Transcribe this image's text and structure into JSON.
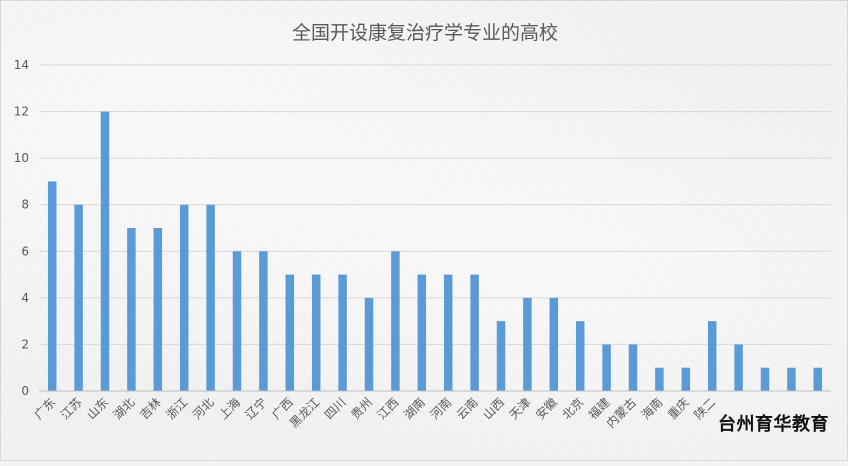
{
  "chart_data": {
    "type": "bar",
    "title": "全国开设康复治疗学专业的高校",
    "xlabel": "",
    "ylabel": "",
    "ylim": [
      0,
      14
    ],
    "yticks": [
      0,
      2,
      4,
      6,
      8,
      10,
      12,
      14
    ],
    "grid": true,
    "legend": "none",
    "bar_color": "#5b9bd5",
    "categories": [
      "广东",
      "江苏",
      "山东",
      "湖北",
      "吉林",
      "浙江",
      "河北",
      "上海",
      "辽宁",
      "广西",
      "黑龙江",
      "四川",
      "贵州",
      "江西",
      "湖南",
      "河南",
      "云南",
      "山西",
      "天津",
      "安徽",
      "北京",
      "福建",
      "内蒙古",
      "海南",
      "重庆",
      "陕二",
      "",
      "",
      "",
      ""
    ],
    "values": [
      9,
      8,
      12,
      7,
      7,
      8,
      8,
      6,
      6,
      5,
      5,
      5,
      4,
      6,
      5,
      5,
      5,
      3,
      4,
      4,
      3,
      2,
      2,
      1,
      1,
      3,
      2,
      1,
      1,
      1
    ]
  },
  "watermark": "台州育华教育"
}
